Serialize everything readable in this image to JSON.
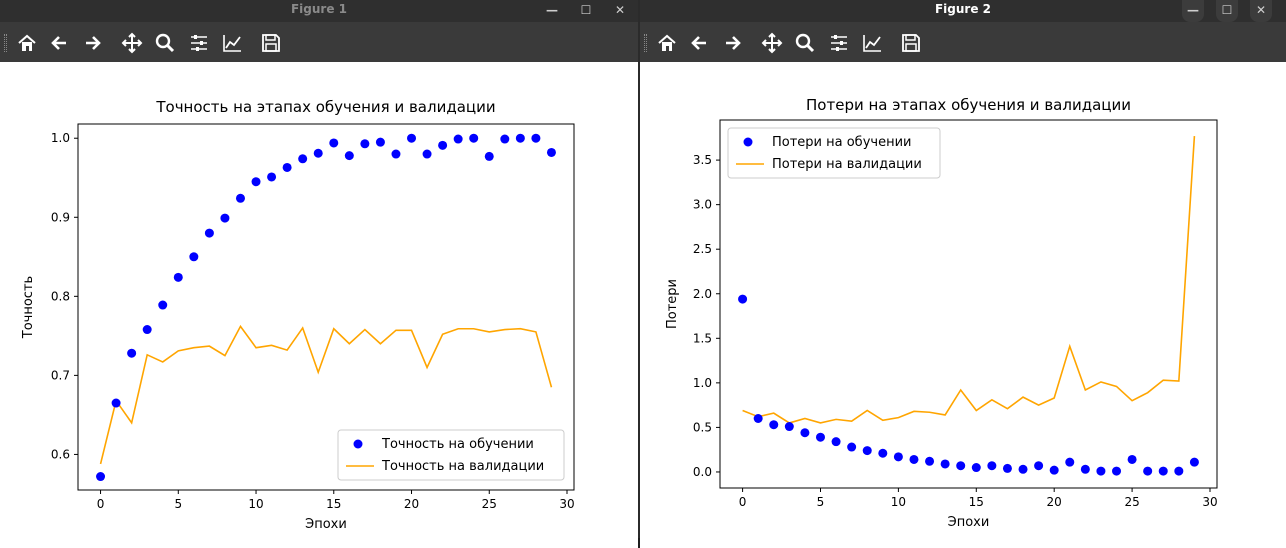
{
  "windows": [
    {
      "title": "Figure 1",
      "controls": {
        "minimize": "—",
        "maximize": "☐",
        "close": "✕"
      },
      "toolbar": [
        "home-icon",
        "back-icon",
        "forward-icon",
        "pan-icon",
        "zoom-icon",
        "configure-subplots-icon",
        "edit-axis-icon",
        "save-icon"
      ]
    },
    {
      "title": "Figure 2",
      "controls": {
        "minimize": "—",
        "maximize": "☐",
        "close": "✕"
      },
      "toolbar": [
        "home-icon",
        "back-icon",
        "forward-icon",
        "pan-icon",
        "zoom-icon",
        "configure-subplots-icon",
        "edit-axis-icon",
        "save-icon"
      ]
    }
  ],
  "chart_data": [
    {
      "type": "scatter+line",
      "title": "Точность на этапах обучения и валидации",
      "xlabel": "Эпохи",
      "ylabel": "Точность",
      "xlim": [
        -1.45,
        30.45
      ],
      "ylim": [
        0.555,
        1.018
      ],
      "xticks": [
        "0",
        "5",
        "10",
        "15",
        "20",
        "25",
        "30"
      ],
      "yticks": [
        "0.6",
        "0.7",
        "0.8",
        "0.9",
        "1.0"
      ],
      "legend_position": "lower right",
      "series": [
        {
          "name": "Точность на обучении",
          "style": "dots",
          "color": "#0000ff",
          "x": [
            0,
            1,
            2,
            3,
            4,
            5,
            6,
            7,
            8,
            9,
            10,
            11,
            12,
            13,
            14,
            15,
            16,
            17,
            18,
            19,
            20,
            21,
            22,
            23,
            24,
            25,
            26,
            27,
            28,
            29
          ],
          "values": [
            0.572,
            0.665,
            0.728,
            0.758,
            0.789,
            0.824,
            0.85,
            0.88,
            0.899,
            0.924,
            0.945,
            0.951,
            0.963,
            0.974,
            0.981,
            0.994,
            0.978,
            0.993,
            0.995,
            0.98,
            1.0,
            0.98,
            0.991,
            0.999,
            1.0,
            0.977,
            0.999,
            1.0,
            1.0,
            0.982
          ]
        },
        {
          "name": "Точность на валидации",
          "style": "line",
          "color": "#ffa500",
          "x": [
            0,
            1,
            2,
            3,
            4,
            5,
            6,
            7,
            8,
            9,
            10,
            11,
            12,
            13,
            14,
            15,
            16,
            17,
            18,
            19,
            20,
            21,
            22,
            23,
            24,
            25,
            26,
            27,
            28,
            29
          ],
          "values": [
            0.588,
            0.668,
            0.64,
            0.726,
            0.717,
            0.731,
            0.735,
            0.737,
            0.725,
            0.762,
            0.735,
            0.738,
            0.732,
            0.76,
            0.704,
            0.759,
            0.74,
            0.758,
            0.74,
            0.757,
            0.757,
            0.71,
            0.752,
            0.759,
            0.759,
            0.755,
            0.758,
            0.759,
            0.755,
            0.685
          ]
        }
      ]
    },
    {
      "type": "scatter+line",
      "title": "Потери на этапах обучения и валидации",
      "xlabel": "Эпохи",
      "ylabel": "Потери",
      "xlim": [
        -1.45,
        30.45
      ],
      "ylim": [
        -0.18,
        3.95
      ],
      "xticks": [
        "0",
        "5",
        "10",
        "15",
        "20",
        "25",
        "30"
      ],
      "yticks": [
        "0.0",
        "0.5",
        "1.0",
        "1.5",
        "2.0",
        "2.5",
        "3.0",
        "3.5"
      ],
      "legend_position": "upper left",
      "series": [
        {
          "name": "Потери на обучении",
          "style": "dots",
          "color": "#0000ff",
          "x": [
            0,
            1,
            2,
            3,
            4,
            5,
            6,
            7,
            8,
            9,
            10,
            11,
            12,
            13,
            14,
            15,
            16,
            17,
            18,
            19,
            20,
            21,
            22,
            23,
            24,
            25,
            26,
            27,
            28,
            29
          ],
          "values": [
            1.94,
            0.6,
            0.53,
            0.51,
            0.44,
            0.39,
            0.34,
            0.28,
            0.24,
            0.21,
            0.17,
            0.14,
            0.12,
            0.09,
            0.07,
            0.05,
            0.07,
            0.04,
            0.03,
            0.07,
            0.02,
            0.11,
            0.03,
            0.01,
            0.01,
            0.14,
            0.01,
            0.01,
            0.01,
            0.11
          ]
        },
        {
          "name": "Потери на валидации",
          "style": "line",
          "color": "#ffa500",
          "x": [
            0,
            1,
            2,
            3,
            4,
            5,
            6,
            7,
            8,
            9,
            10,
            11,
            12,
            13,
            14,
            15,
            16,
            17,
            18,
            19,
            20,
            21,
            22,
            23,
            24,
            25,
            26,
            27,
            28,
            29
          ],
          "values": [
            0.69,
            0.62,
            0.66,
            0.55,
            0.6,
            0.55,
            0.59,
            0.57,
            0.69,
            0.58,
            0.61,
            0.68,
            0.67,
            0.64,
            0.92,
            0.69,
            0.81,
            0.71,
            0.84,
            0.75,
            0.83,
            1.41,
            0.92,
            1.01,
            0.96,
            0.8,
            0.89,
            1.03,
            1.02,
            3.77
          ]
        }
      ]
    }
  ]
}
